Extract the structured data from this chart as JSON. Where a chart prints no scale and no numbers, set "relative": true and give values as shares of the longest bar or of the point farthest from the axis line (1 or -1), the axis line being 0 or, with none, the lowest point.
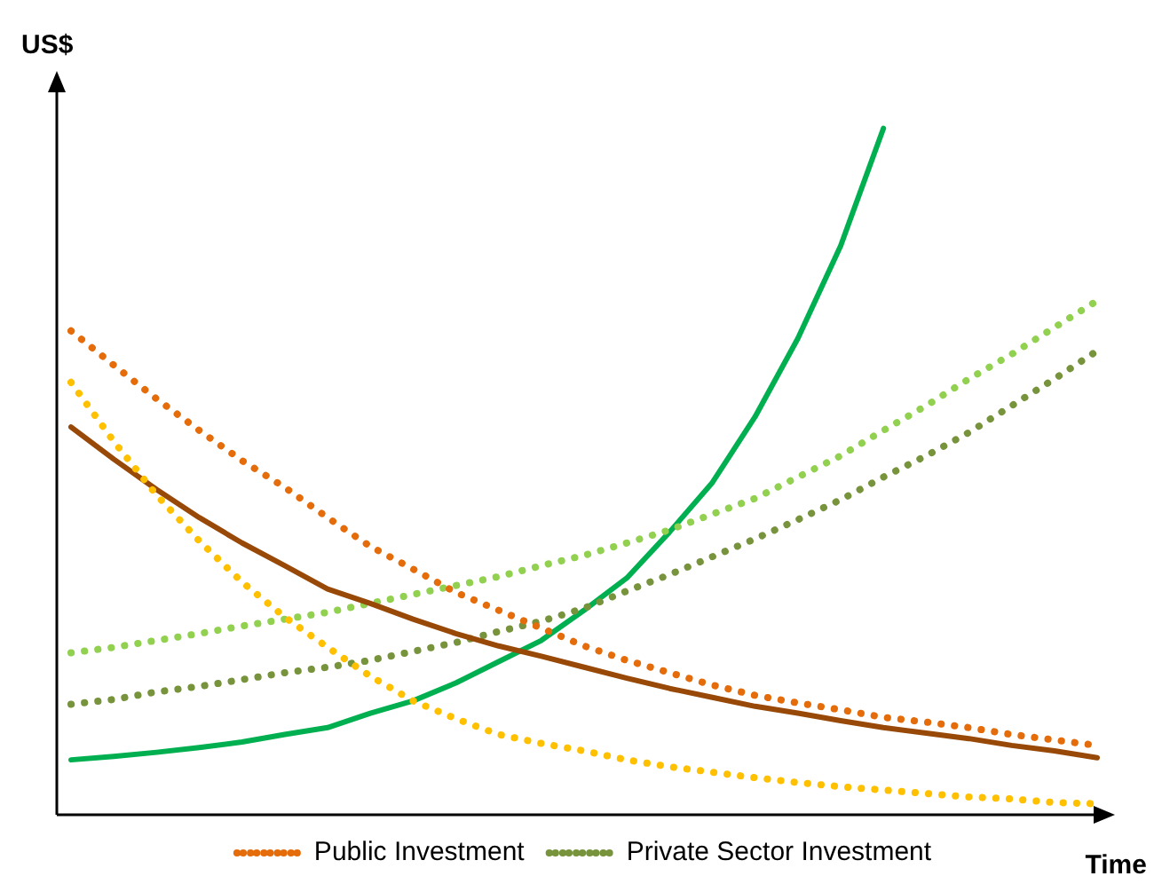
{
  "chart_data": {
    "type": "line",
    "relative": true,
    "ylabel": "US$",
    "xlabel": "Time",
    "legend": "bottom",
    "categories": [
      null,
      null,
      null,
      null,
      null,
      null,
      null,
      null,
      null,
      null,
      null,
      null,
      null,
      null,
      null,
      null,
      null,
      null,
      null,
      null,
      null,
      null,
      null,
      null,
      null
    ],
    "series": [
      {
        "name": "Public Investment",
        "color": "#e46c0a",
        "line_style": "dotted",
        "values": [
          0.705,
          0.655,
          0.606,
          0.56,
          0.516,
          0.477,
          0.433,
          0.391,
          0.358,
          0.324,
          0.298,
          0.272,
          0.246,
          0.225,
          0.207,
          0.189,
          0.174,
          0.163,
          0.153,
          0.142,
          0.135,
          0.127,
          0.117,
          0.109,
          0.101
        ]
      },
      {
        "color": "#ffc000",
        "line_style": "dotted",
        "values": [
          0.63,
          0.544,
          0.466,
          0.399,
          0.339,
          0.288,
          0.244,
          0.202,
          0.166,
          0.14,
          0.117,
          0.104,
          0.093,
          0.08,
          0.07,
          0.062,
          0.054,
          0.047,
          0.041,
          0.036,
          0.031,
          0.026,
          0.023,
          0.018,
          0.016
        ]
      },
      {
        "color": "#984807",
        "line_style": "solid",
        "values": [
          0.565,
          0.518,
          0.474,
          0.433,
          0.396,
          0.363,
          0.329,
          0.308,
          0.285,
          0.264,
          0.246,
          0.231,
          0.215,
          0.199,
          0.184,
          0.171,
          0.158,
          0.148,
          0.137,
          0.127,
          0.119,
          0.111,
          0.101,
          0.093,
          0.083
        ]
      },
      {
        "color": "#92d050",
        "line_style": "dotted",
        "values": [
          0.236,
          0.244,
          0.254,
          0.264,
          0.275,
          0.285,
          0.295,
          0.308,
          0.321,
          0.334,
          0.347,
          0.363,
          0.378,
          0.396,
          0.415,
          0.438,
          0.461,
          0.492,
          0.523,
          0.56,
          0.596,
          0.635,
          0.671,
          0.71,
          0.749
        ]
      },
      {
        "name": "Private Sector Investment",
        "color": "#77933c",
        "line_style": "dotted",
        "values": [
          0.161,
          0.168,
          0.179,
          0.187,
          0.197,
          0.207,
          0.215,
          0.225,
          0.238,
          0.251,
          0.267,
          0.282,
          0.301,
          0.326,
          0.35,
          0.376,
          0.402,
          0.43,
          0.459,
          0.492,
          0.523,
          0.557,
          0.596,
          0.635,
          0.676
        ]
      },
      {
        "color": "#00b050",
        "line_style": "solid",
        "values": [
          0.08,
          0.085,
          0.091,
          0.098,
          0.106,
          0.117,
          0.127,
          0.148,
          0.166,
          0.192,
          0.223,
          0.254,
          0.298,
          0.345,
          0.412,
          0.484,
          0.58,
          0.694,
          0.829,
          1,
          null,
          null,
          null,
          null,
          null
        ]
      }
    ]
  }
}
